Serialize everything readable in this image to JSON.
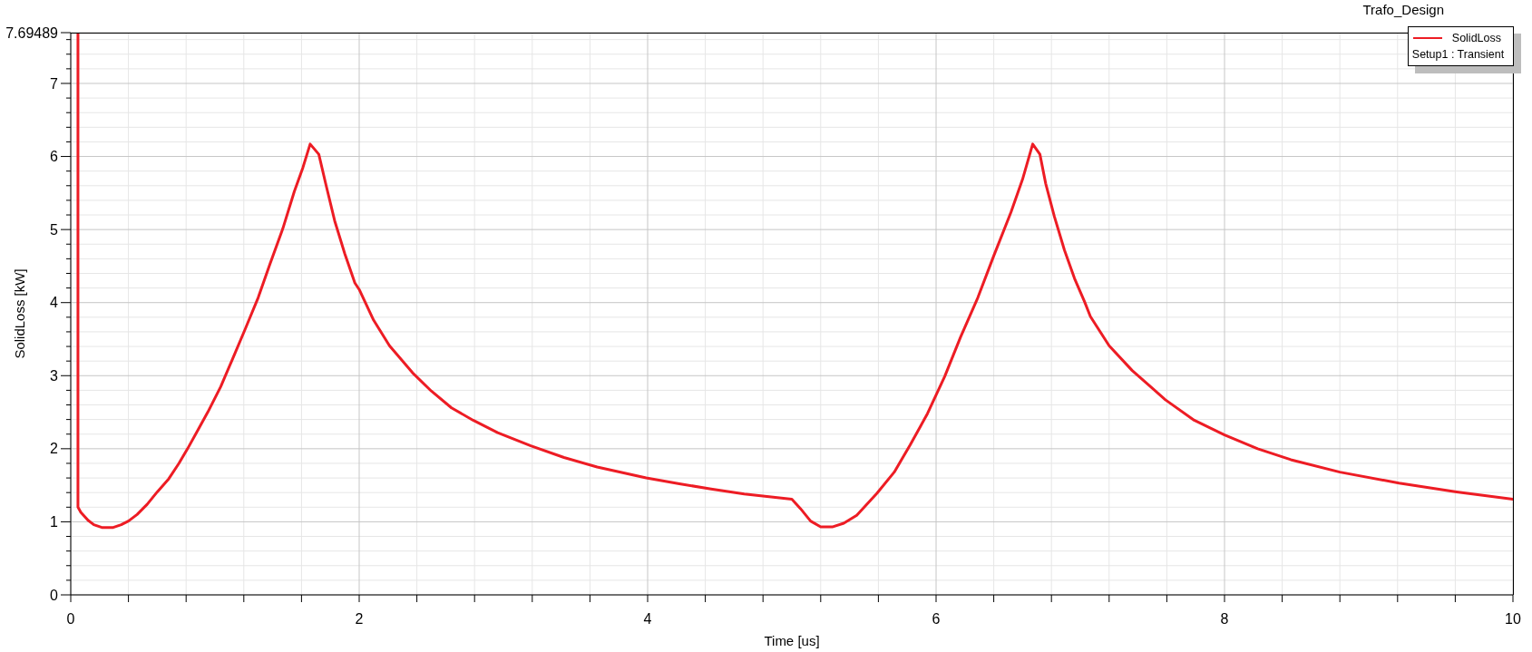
{
  "chart_data": {
    "type": "line",
    "xlabel": "Time [us]",
    "ylabel": "SolidLoss [kW]",
    "legend_title": "Setup1 : Transient",
    "annotations": [
      "Trafo_Design"
    ],
    "x": [
      0.05,
      0.05,
      0.07,
      0.12,
      0.16,
      0.22,
      0.29,
      0.35,
      0.4,
      0.46,
      0.53,
      0.6,
      0.68,
      0.75,
      0.81,
      0.88,
      0.95,
      1.04,
      1.12,
      1.21,
      1.3,
      1.38,
      1.47,
      1.55,
      1.61,
      1.66,
      1.72,
      1.77,
      1.83,
      1.9,
      1.97,
      2.0,
      2.1,
      2.21,
      2.37,
      2.5,
      2.64,
      2.79,
      2.96,
      3.19,
      3.42,
      3.65,
      3.99,
      4.22,
      4.44,
      4.67,
      5.0,
      5.06,
      5.13,
      5.2,
      5.28,
      5.36,
      5.45,
      5.59,
      5.71,
      5.82,
      5.94,
      6.06,
      6.17,
      6.29,
      6.4,
      6.52,
      6.6,
      6.67,
      6.72,
      6.76,
      6.82,
      6.89,
      6.96,
      7.03,
      7.07,
      7.2,
      7.36,
      7.59,
      7.79,
      8.0,
      8.23,
      8.46,
      8.8,
      9.21,
      9.61,
      10.0
    ],
    "series": [
      {
        "name": "SolidLoss",
        "color": "#ed1c24",
        "values": [
          7.69,
          1.2,
          1.13,
          1.02,
          0.96,
          0.92,
          0.92,
          0.96,
          1.01,
          1.1,
          1.24,
          1.41,
          1.59,
          1.8,
          2.0,
          2.25,
          2.5,
          2.85,
          3.22,
          3.64,
          4.07,
          4.52,
          5.01,
          5.52,
          5.85,
          6.17,
          6.03,
          5.61,
          5.12,
          4.67,
          4.27,
          4.18,
          3.76,
          3.41,
          3.04,
          2.79,
          2.56,
          2.39,
          2.22,
          2.04,
          1.88,
          1.75,
          1.6,
          1.52,
          1.45,
          1.38,
          1.31,
          1.18,
          1.01,
          0.93,
          0.93,
          0.98,
          1.09,
          1.39,
          1.68,
          2.05,
          2.48,
          2.99,
          3.53,
          4.07,
          4.64,
          5.24,
          5.69,
          6.17,
          6.03,
          5.63,
          5.18,
          4.72,
          4.33,
          4.01,
          3.81,
          3.41,
          3.07,
          2.67,
          2.39,
          2.19,
          2.0,
          1.85,
          1.68,
          1.53,
          1.41,
          1.31
        ]
      }
    ],
    "xlim": [
      0,
      10
    ],
    "ylim": [
      0,
      7.69489
    ],
    "xticks": [
      0,
      {
        "value": 0.4,
        "label": null
      },
      {
        "value": 0.8,
        "label": null
      },
      {
        "value": 1.2,
        "label": null
      },
      {
        "value": 1.6,
        "label": null
      },
      2,
      {
        "value": 2.4,
        "label": null
      },
      {
        "value": 2.8,
        "label": null
      },
      {
        "value": 3.2,
        "label": null
      },
      {
        "value": 3.6,
        "label": null
      },
      4,
      {
        "value": 4.4,
        "label": null
      },
      {
        "value": 4.8,
        "label": null
      },
      {
        "value": 5.2,
        "label": null
      },
      {
        "value": 5.6,
        "label": null
      },
      6,
      {
        "value": 6.4,
        "label": null
      },
      {
        "value": 6.8,
        "label": null
      },
      {
        "value": 7.2,
        "label": null
      },
      {
        "value": 7.6,
        "label": null
      },
      8,
      {
        "value": 8.4,
        "label": null
      },
      {
        "value": 8.8,
        "label": null
      },
      {
        "value": 9.2,
        "label": null
      },
      {
        "value": 9.6,
        "label": null
      },
      10
    ],
    "yticks": [
      0,
      {
        "value": 0.2,
        "label": null
      },
      {
        "value": 0.4,
        "label": null
      },
      {
        "value": 0.6,
        "label": null
      },
      {
        "value": 0.8,
        "label": null
      },
      1,
      {
        "value": 1.2,
        "label": null
      },
      {
        "value": 1.4,
        "label": null
      },
      {
        "value": 1.6,
        "label": null
      },
      {
        "value": 1.8,
        "label": null
      },
      2,
      {
        "value": 2.2,
        "label": null
      },
      {
        "value": 2.4,
        "label": null
      },
      {
        "value": 2.6,
        "label": null
      },
      {
        "value": 2.8,
        "label": null
      },
      3,
      {
        "value": 3.2,
        "label": null
      },
      {
        "value": 3.4,
        "label": null
      },
      {
        "value": 3.6,
        "label": null
      },
      {
        "value": 3.8,
        "label": null
      },
      4,
      {
        "value": 4.2,
        "label": null
      },
      {
        "value": 4.4,
        "label": null
      },
      {
        "value": 4.6,
        "label": null
      },
      {
        "value": 4.8,
        "label": null
      },
      5,
      {
        "value": 5.2,
        "label": null
      },
      {
        "value": 5.4,
        "label": null
      },
      {
        "value": 5.6,
        "label": null
      },
      {
        "value": 5.8,
        "label": null
      },
      6,
      {
        "value": 6.2,
        "label": null
      },
      {
        "value": 6.4,
        "label": null
      },
      {
        "value": 6.6,
        "label": null
      },
      {
        "value": 6.8,
        "label": null
      },
      7,
      {
        "value": 7.2,
        "label": null
      },
      {
        "value": 7.4,
        "label": null
      },
      {
        "value": 7.6,
        "label": null
      },
      7.69489
    ],
    "grid": true,
    "legend": "top right"
  }
}
